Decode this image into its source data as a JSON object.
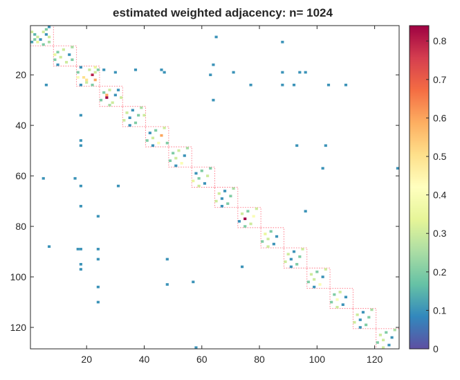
{
  "chart_data": {
    "type": "heatmap",
    "title": "estimated weighted adjacency: n= 1024",
    "xlabel": "",
    "ylabel": "",
    "xlim": [
      0.5,
      128.5
    ],
    "ylim": [
      0.5,
      128.5
    ],
    "y_reversed": true,
    "x_ticks": [
      20,
      40,
      60,
      80,
      100,
      120
    ],
    "x_tick_labels": [
      "20",
      "40",
      "60",
      "80",
      "100",
      "120"
    ],
    "y_ticks": [
      20,
      40,
      60,
      80,
      100,
      120
    ],
    "y_tick_labels": [
      "20",
      "40",
      "60",
      "80",
      "100",
      "120"
    ],
    "colorbar": {
      "min": 0,
      "max": 0.84,
      "ticks": [
        0,
        0.1,
        0.2,
        0.3,
        0.4,
        0.5,
        0.6,
        0.7,
        0.8
      ],
      "tick_labels": [
        "0",
        "0.1",
        "0.2",
        "0.3",
        "0.4",
        "0.5",
        "0.6",
        "0.7",
        "0.8"
      ],
      "colormap": [
        "#5e4fa2",
        "#3288bd",
        "#66c2a5",
        "#abdda4",
        "#e6f598",
        "#ffffbf",
        "#fee08b",
        "#fdae61",
        "#f46d43",
        "#d53e4f",
        "#9e0142"
      ]
    },
    "blocks": [
      {
        "start": 1,
        "end": 8
      },
      {
        "start": 9,
        "end": 16
      },
      {
        "start": 17,
        "end": 24
      },
      {
        "start": 25,
        "end": 32
      },
      {
        "start": 33,
        "end": 40
      },
      {
        "start": 41,
        "end": 48
      },
      {
        "start": 49,
        "end": 56
      },
      {
        "start": 57,
        "end": 64
      },
      {
        "start": 65,
        "end": 72
      },
      {
        "start": 73,
        "end": 80
      },
      {
        "start": 81,
        "end": 88
      },
      {
        "start": 89,
        "end": 96
      },
      {
        "start": 97,
        "end": 104
      },
      {
        "start": 105,
        "end": 112
      },
      {
        "start": 113,
        "end": 120
      },
      {
        "start": 121,
        "end": 128
      }
    ],
    "entries": [
      [
        2,
        6,
        0.2
      ],
      [
        3,
        5,
        0.3
      ],
      [
        4,
        6,
        0.1
      ],
      [
        5,
        3,
        0.3
      ],
      [
        6,
        2,
        0.2
      ],
      [
        6,
        4,
        0.1
      ],
      [
        7,
        1,
        0.12
      ],
      [
        7,
        3,
        0.35
      ],
      [
        8,
        5,
        0.2
      ],
      [
        1,
        7,
        0.1
      ],
      [
        4,
        2,
        0.15
      ],
      [
        5,
        7,
        0.3
      ],
      [
        7,
        7,
        0.25
      ],
      [
        3,
        1,
        0.3
      ],
      [
        10,
        12,
        0.3
      ],
      [
        11,
        10,
        0.2
      ],
      [
        12,
        14,
        0.1
      ],
      [
        13,
        11,
        0.3
      ],
      [
        14,
        9,
        0.2
      ],
      [
        15,
        13,
        0.3
      ],
      [
        16,
        10,
        0.1
      ],
      [
        9,
        15,
        0.25
      ],
      [
        12,
        9,
        0.35
      ],
      [
        14,
        15,
        0.2
      ],
      [
        17,
        18,
        0.1
      ],
      [
        18,
        21,
        0.3
      ],
      [
        19,
        17,
        0.2
      ],
      [
        20,
        22,
        0.8
      ],
      [
        21,
        19,
        0.5
      ],
      [
        22,
        23,
        0.6
      ],
      [
        23,
        20,
        0.3
      ],
      [
        24,
        18,
        0.1
      ],
      [
        18,
        24,
        0.2
      ],
      [
        21,
        17,
        0.4
      ],
      [
        19,
        23,
        0.3
      ],
      [
        22,
        20,
        0.5
      ],
      [
        24,
        22,
        0.2
      ],
      [
        17,
        23,
        0.35
      ],
      [
        26,
        28,
        0.3
      ],
      [
        27,
        26,
        0.2
      ],
      [
        28,
        30,
        0.1
      ],
      [
        29,
        27,
        0.84
      ],
      [
        30,
        25,
        0.2
      ],
      [
        28,
        27,
        0.6
      ],
      [
        31,
        29,
        0.3
      ],
      [
        26,
        31,
        0.1
      ],
      [
        32,
        28,
        0.25
      ],
      [
        29,
        32,
        0.3
      ],
      [
        34,
        36,
        0.1
      ],
      [
        35,
        34,
        0.3
      ],
      [
        36,
        38,
        0.2
      ],
      [
        37,
        35,
        0.1
      ],
      [
        38,
        33,
        0.3
      ],
      [
        39,
        37,
        0.2
      ],
      [
        40,
        35,
        0.1
      ],
      [
        33,
        39,
        0.25
      ],
      [
        36,
        40,
        0.3
      ],
      [
        42,
        44,
        0.2
      ],
      [
        43,
        42,
        0.1
      ],
      [
        44,
        46,
        0.6
      ],
      [
        45,
        43,
        0.3
      ],
      [
        46,
        41,
        0.2
      ],
      [
        47,
        45,
        0.4
      ],
      [
        48,
        43,
        0.1
      ],
      [
        41,
        47,
        0.3
      ],
      [
        47,
        48,
        0.2
      ],
      [
        50,
        52,
        0.3
      ],
      [
        51,
        50,
        0.2
      ],
      [
        52,
        54,
        0.1
      ],
      [
        53,
        51,
        0.3
      ],
      [
        54,
        49,
        0.2
      ],
      [
        55,
        53,
        0.4
      ],
      [
        56,
        51,
        0.1
      ],
      [
        49,
        55,
        0.25
      ],
      [
        58,
        60,
        0.2
      ],
      [
        59,
        58,
        0.1
      ],
      [
        60,
        62,
        0.3
      ],
      [
        61,
        59,
        0.2
      ],
      [
        62,
        57,
        0.35
      ],
      [
        63,
        61,
        0.1
      ],
      [
        64,
        59,
        0.3
      ],
      [
        57,
        63,
        0.2
      ],
      [
        66,
        68,
        0.1
      ],
      [
        67,
        66,
        0.3
      ],
      [
        68,
        70,
        0.2
      ],
      [
        69,
        67,
        0.1
      ],
      [
        70,
        65,
        0.3
      ],
      [
        71,
        69,
        0.2
      ],
      [
        72,
        67,
        0.1
      ],
      [
        65,
        71,
        0.25
      ],
      [
        74,
        76,
        0.2
      ],
      [
        75,
        74,
        0.3
      ],
      [
        76,
        78,
        0.4
      ],
      [
        77,
        75,
        0.84
      ],
      [
        78,
        73,
        0.1
      ],
      [
        79,
        77,
        0.3
      ],
      [
        80,
        75,
        0.2
      ],
      [
        73,
        79,
        0.3
      ],
      [
        82,
        84,
        0.2
      ],
      [
        83,
        82,
        0.35
      ],
      [
        84,
        86,
        0.1
      ],
      [
        85,
        83,
        0.3
      ],
      [
        86,
        81,
        0.2
      ],
      [
        87,
        85,
        0.1
      ],
      [
        88,
        83,
        0.3
      ],
      [
        90,
        92,
        0.1
      ],
      [
        91,
        90,
        0.3
      ],
      [
        92,
        94,
        0.2
      ],
      [
        93,
        91,
        0.1
      ],
      [
        94,
        89,
        0.3
      ],
      [
        95,
        93,
        0.2
      ],
      [
        96,
        91,
        0.1
      ],
      [
        89,
        95,
        0.3
      ],
      [
        98,
        100,
        0.2
      ],
      [
        99,
        98,
        0.3
      ],
      [
        100,
        102,
        0.1
      ],
      [
        101,
        99,
        0.3
      ],
      [
        102,
        97,
        0.2
      ],
      [
        103,
        101,
        0.4
      ],
      [
        104,
        99,
        0.1
      ],
      [
        97,
        103,
        0.3
      ],
      [
        106,
        108,
        0.3
      ],
      [
        107,
        106,
        0.2
      ],
      [
        108,
        110,
        0.1
      ],
      [
        109,
        107,
        0.4
      ],
      [
        110,
        105,
        0.2
      ],
      [
        111,
        109,
        0.1
      ],
      [
        112,
        107,
        0.3
      ],
      [
        114,
        116,
        0.1
      ],
      [
        115,
        114,
        0.3
      ],
      [
        116,
        118,
        0.2
      ],
      [
        117,
        115,
        0.1
      ],
      [
        118,
        113,
        0.3
      ],
      [
        119,
        117,
        0.2
      ],
      [
        120,
        115,
        0.1
      ],
      [
        113,
        119,
        0.25
      ],
      [
        122,
        124,
        0.2
      ],
      [
        123,
        122,
        0.3
      ],
      [
        124,
        126,
        0.1
      ],
      [
        125,
        123,
        0.3
      ],
      [
        126,
        121,
        0.2
      ],
      [
        127,
        125,
        0.1
      ],
      [
        128,
        123,
        0.3
      ],
      [
        121,
        127,
        0.25
      ],
      [
        24,
        6,
        0.1
      ],
      [
        5,
        65,
        0.1
      ],
      [
        16,
        64,
        0.1
      ],
      [
        20,
        63,
        0.1
      ],
      [
        19,
        71,
        0.1
      ],
      [
        19,
        88,
        0.1
      ],
      [
        19,
        94,
        0.1
      ],
      [
        19,
        96,
        0.1
      ],
      [
        24,
        77,
        0.1
      ],
      [
        24,
        88,
        0.1
      ],
      [
        24,
        92,
        0.1
      ],
      [
        24,
        104,
        0.1
      ],
      [
        24,
        110,
        0.1
      ],
      [
        18,
        46,
        0.1
      ],
      [
        19,
        47,
        0.1
      ],
      [
        18,
        37,
        0.1
      ],
      [
        19,
        30,
        0.1
      ],
      [
        18,
        26,
        0.1
      ],
      [
        30,
        64,
        0.1
      ],
      [
        7,
        88,
        0.1
      ],
      [
        61,
        5,
        0.1
      ],
      [
        61,
        16,
        0.1
      ],
      [
        64,
        18,
        0.1
      ],
      [
        64,
        31,
        0.1
      ],
      [
        46,
        18,
        0.1
      ],
      [
        48,
        18,
        0.1
      ],
      [
        36,
        18,
        0.1
      ],
      [
        72,
        18,
        0.1
      ],
      [
        76,
        24,
        0.1
      ],
      [
        89,
        17,
        0.1
      ],
      [
        89,
        18,
        0.1
      ],
      [
        89,
        24,
        0.1
      ],
      [
        88,
        7,
        0.1
      ],
      [
        93,
        24,
        0.1
      ],
      [
        95,
        18,
        0.1
      ],
      [
        97,
        18,
        0.1
      ],
      [
        104,
        24,
        0.1
      ],
      [
        110,
        24,
        0.1
      ],
      [
        93,
        48,
        0.1
      ],
      [
        103,
        48,
        0.1
      ],
      [
        102,
        57,
        0.1
      ],
      [
        128,
        58,
        0.1
      ],
      [
        96,
        74,
        0.1
      ],
      [
        74,
        96,
        0.1
      ],
      [
        48,
        93,
        0.1
      ],
      [
        48,
        103,
        0.1
      ],
      [
        57,
        102,
        0.1
      ],
      [
        57,
        128,
        0.1
      ]
    ]
  }
}
